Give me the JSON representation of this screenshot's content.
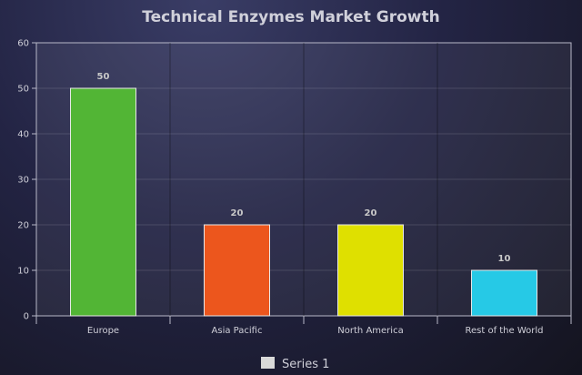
{
  "chart_data": {
    "type": "bar",
    "title": "Technical Enzymes Market Growth",
    "categories": [
      "Europe",
      "Asia Pacific",
      "North America",
      "Rest of the World"
    ],
    "series": [
      {
        "name": "Series 1",
        "values": [
          50,
          20,
          20,
          10
        ]
      }
    ],
    "bar_colors": [
      "#52b535",
      "#ec561d",
      "#dfe000",
      "#26c9e6"
    ],
    "ylim": [
      0,
      60
    ],
    "yticks": [
      0,
      10,
      20,
      30,
      40,
      50,
      60
    ],
    "xlabel": "",
    "ylabel": "",
    "grid": true,
    "legend_position": "bottom-center",
    "legend_swatch_color": "#d9d9d9"
  }
}
